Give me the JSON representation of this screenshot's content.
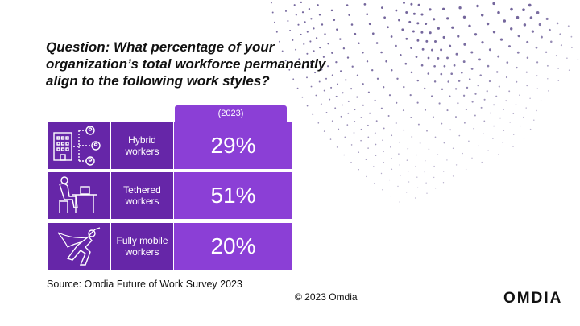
{
  "question": "Question: What percentage of your organization’s total workforce permanently align to the following work styles?",
  "source": "Source: Omdia Future of Work Survey 2023",
  "copyright": "© 2023 Omdia",
  "logo": "OMDIA",
  "colors": {
    "dark_purple": "#6626a8",
    "light_purple": "#8b3fd6",
    "dots": "#5a4a8a"
  },
  "chart_data": {
    "type": "table",
    "columns": [
      "(2023)"
    ],
    "categories": [
      "Hybrid workers",
      "Tethered workers",
      "Fully mobile workers"
    ],
    "values": [
      29,
      51,
      20
    ],
    "unit": "%",
    "rows": [
      {
        "icon": "office-network-icon",
        "label": "Hybrid workers",
        "value": 29,
        "value_text": "29%"
      },
      {
        "icon": "desk-worker-icon",
        "label": "Tethered workers",
        "value": 51,
        "value_text": "51%"
      },
      {
        "icon": "flying-hero-icon",
        "label": "Fully mobile workers",
        "value": 20,
        "value_text": "20%"
      }
    ]
  }
}
